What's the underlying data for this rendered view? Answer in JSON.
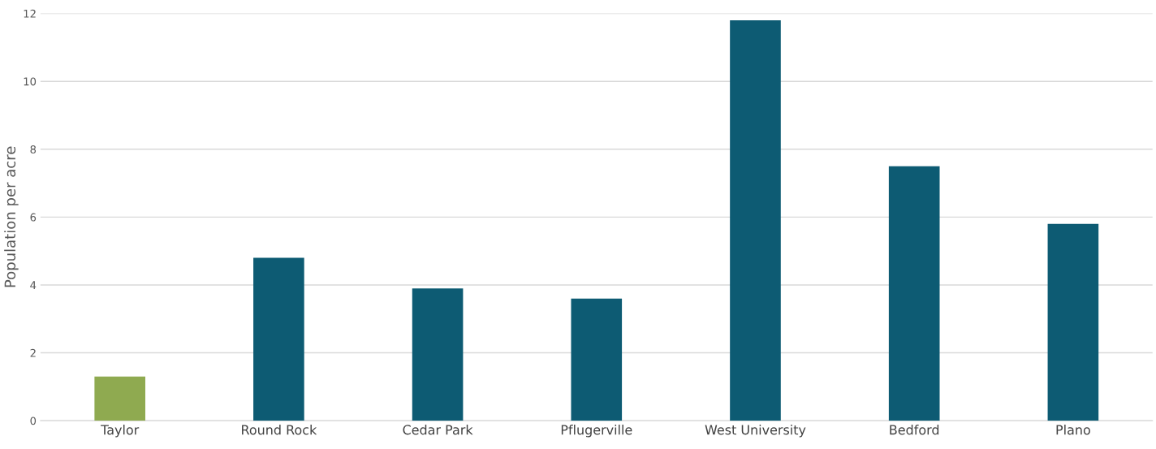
{
  "chart_data": {
    "type": "bar",
    "ylabel": "Population per acre",
    "categories": [
      "Taylor",
      "Round Rock",
      "Cedar Park",
      "Pflugerville",
      "West University",
      "Bedford",
      "Plano"
    ],
    "values": [
      1.3,
      4.8,
      3.9,
      3.6,
      11.8,
      7.5,
      5.8
    ],
    "colors": [
      "#8faa50",
      "#0d5b73",
      "#0d5b73",
      "#0d5b73",
      "#0d5b73",
      "#0d5b73",
      "#0d5b73"
    ],
    "ylim": [
      0,
      12
    ],
    "yticks": [
      0,
      2,
      4,
      6,
      8,
      10,
      12
    ],
    "grid": "y"
  }
}
